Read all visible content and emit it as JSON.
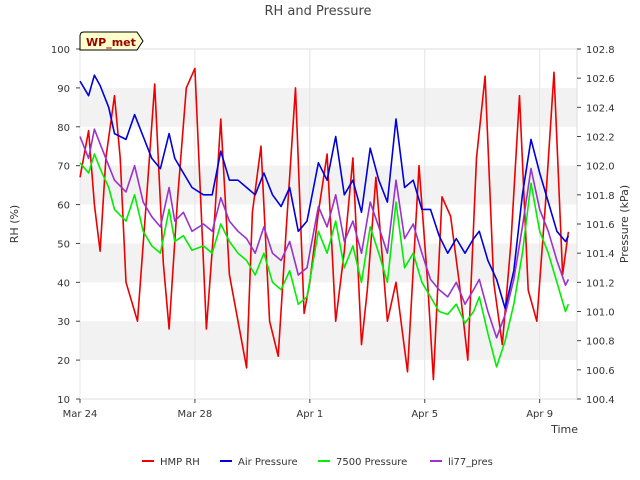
{
  "chart_data": {
    "type": "line",
    "title": "RH and Pressure",
    "site_badge": "WP_met",
    "xlabel": "Time",
    "ylabel_left": "RH (%)",
    "ylabel_right": "Pressure (kPa)",
    "x_unit": "day",
    "xlim": [
      0,
      17.3
    ],
    "x_ticks": [
      {
        "x": 0,
        "label": "Mar 24"
      },
      {
        "x": 4,
        "label": "Mar 28"
      },
      {
        "x": 8,
        "label": "Apr 1"
      },
      {
        "x": 12,
        "label": "Apr 5"
      },
      {
        "x": 16,
        "label": "Apr 9"
      }
    ],
    "ylim_left": [
      10,
      100
    ],
    "yticks_left": [
      "10",
      "20",
      "30",
      "40",
      "50",
      "60",
      "70",
      "80",
      "90",
      "100"
    ],
    "ylim_right": [
      100.4,
      102.8
    ],
    "yticks_right": [
      "100.4",
      "100.6",
      "100.8",
      "101.0",
      "101.2",
      "101.4",
      "101.6",
      "101.8",
      "102.0",
      "102.2",
      "102.4",
      "102.6",
      "102.8"
    ],
    "grid_bands": true,
    "legend_position": "bottom",
    "series": [
      {
        "name": "HMP RH",
        "color": "#ee0000",
        "axis": "left",
        "x": [
          0,
          0.3,
          0.5,
          0.7,
          0.9,
          1.2,
          1.4,
          1.6,
          2.0,
          2.3,
          2.6,
          2.9,
          3.1,
          3.4,
          3.7,
          4.0,
          4.4,
          4.7,
          4.9,
          5.2,
          5.5,
          5.8,
          6.0,
          6.3,
          6.6,
          6.9,
          7.2,
          7.5,
          7.8,
          8.0,
          8.3,
          8.6,
          8.9,
          9.2,
          9.5,
          9.8,
          10.0,
          10.3,
          10.7,
          11.0,
          11.4,
          11.8,
          12.1,
          12.3,
          12.6,
          12.9,
          13.2,
          13.5,
          13.8,
          14.1,
          14.4,
          14.7,
          15.0,
          15.3,
          15.6,
          15.9,
          16.2,
          16.5,
          16.8,
          17.0
        ],
        "y": [
          67,
          79,
          60,
          48,
          72,
          88,
          72,
          40,
          30,
          60,
          91,
          45,
          28,
          62,
          90,
          95,
          28,
          58,
          82,
          42,
          30,
          18,
          58,
          75,
          30,
          21,
          56,
          90,
          32,
          40,
          58,
          73,
          30,
          48,
          72,
          24,
          38,
          67,
          30,
          40,
          17,
          70,
          40,
          15,
          62,
          57,
          40,
          20,
          72,
          93,
          40,
          24,
          50,
          88,
          38,
          30,
          60,
          94,
          42,
          53
        ]
      },
      {
        "name": "Air Pressure",
        "color": "#0000dd",
        "axis": "left",
        "x": [
          0,
          0.3,
          0.5,
          0.7,
          1.0,
          1.2,
          1.6,
          1.9,
          2.2,
          2.5,
          2.8,
          3.1,
          3.3,
          3.6,
          3.9,
          4.3,
          4.6,
          4.9,
          5.2,
          5.5,
          5.8,
          6.1,
          6.4,
          6.7,
          7.0,
          7.3,
          7.6,
          7.9,
          8.3,
          8.6,
          8.9,
          9.2,
          9.5,
          9.8,
          10.1,
          10.4,
          10.7,
          11.0,
          11.3,
          11.6,
          11.9,
          12.2,
          12.5,
          12.8,
          13.1,
          13.4,
          13.7,
          13.9,
          14.2,
          14.5,
          14.8,
          15.1,
          15.4,
          15.7,
          16.0,
          16.3,
          16.6,
          16.9,
          17.0
        ],
        "y": [
          102.58,
          102.48,
          102.62,
          102.55,
          102.4,
          102.22,
          102.18,
          102.35,
          102.2,
          102.05,
          101.98,
          102.22,
          102.05,
          101.95,
          101.85,
          101.8,
          101.8,
          102.1,
          101.9,
          101.9,
          101.85,
          101.8,
          101.95,
          101.8,
          101.72,
          101.85,
          101.55,
          101.62,
          102.02,
          101.9,
          102.2,
          101.8,
          101.9,
          101.68,
          102.12,
          101.9,
          101.75,
          102.32,
          101.85,
          101.9,
          101.7,
          101.7,
          101.52,
          101.4,
          101.5,
          101.4,
          101.5,
          101.55,
          101.35,
          101.22,
          101.02,
          101.28,
          101.8,
          102.18,
          101.95,
          101.75,
          101.55,
          101.48,
          101.52
        ]
      },
      {
        "name": "7500 Pressure",
        "color": "#00ee00",
        "axis": "left",
        "x": [
          0,
          0.3,
          0.5,
          0.7,
          1.0,
          1.2,
          1.6,
          1.9,
          2.2,
          2.5,
          2.8,
          3.1,
          3.3,
          3.6,
          3.9,
          4.3,
          4.6,
          4.9,
          5.2,
          5.5,
          5.8,
          6.1,
          6.4,
          6.7,
          7.0,
          7.3,
          7.6,
          7.9,
          8.3,
          8.6,
          8.9,
          9.2,
          9.5,
          9.8,
          10.1,
          10.4,
          10.7,
          11.0,
          11.3,
          11.6,
          11.9,
          12.2,
          12.5,
          12.8,
          13.1,
          13.4,
          13.7,
          13.9,
          14.2,
          14.5,
          14.8,
          15.1,
          15.4,
          15.7,
          16.0,
          16.3,
          16.6,
          16.9,
          17.0
        ],
        "y": [
          102.02,
          101.95,
          102.08,
          101.98,
          101.85,
          101.7,
          101.62,
          101.8,
          101.55,
          101.45,
          101.4,
          101.7,
          101.48,
          101.52,
          101.42,
          101.45,
          101.4,
          101.6,
          101.48,
          101.4,
          101.35,
          101.25,
          101.4,
          101.2,
          101.15,
          101.28,
          101.05,
          101.1,
          101.55,
          101.4,
          101.62,
          101.3,
          101.45,
          101.2,
          101.58,
          101.4,
          101.2,
          101.75,
          101.3,
          101.4,
          101.2,
          101.1,
          101.0,
          100.98,
          101.05,
          100.92,
          101.0,
          101.1,
          100.85,
          100.62,
          100.8,
          101.05,
          101.4,
          101.88,
          101.55,
          101.4,
          101.2,
          101.0,
          101.05
        ]
      },
      {
        "name": "li77_pres",
        "color": "#9933cc",
        "axis": "left",
        "x": [
          0,
          0.3,
          0.5,
          0.7,
          1.0,
          1.2,
          1.6,
          1.9,
          2.2,
          2.5,
          2.8,
          3.1,
          3.3,
          3.6,
          3.9,
          4.3,
          4.6,
          4.9,
          5.2,
          5.5,
          5.8,
          6.1,
          6.4,
          6.7,
          7.0,
          7.3,
          7.6,
          7.9,
          8.3,
          8.6,
          8.9,
          9.2,
          9.5,
          9.8,
          10.1,
          10.4,
          10.7,
          11.0,
          11.3,
          11.6,
          11.9,
          12.2,
          12.5,
          12.8,
          13.1,
          13.4,
          13.7,
          13.9,
          14.2,
          14.5,
          14.8,
          15.1,
          15.4,
          15.7,
          16.0,
          16.3,
          16.6,
          16.9,
          17.0
        ],
        "y": [
          102.2,
          102.05,
          102.25,
          102.15,
          102.0,
          101.9,
          101.82,
          102.0,
          101.75,
          101.65,
          101.58,
          101.85,
          101.62,
          101.68,
          101.55,
          101.6,
          101.55,
          101.78,
          101.62,
          101.55,
          101.5,
          101.4,
          101.58,
          101.4,
          101.35,
          101.48,
          101.25,
          101.3,
          101.72,
          101.58,
          101.8,
          101.48,
          101.62,
          101.4,
          101.75,
          101.58,
          101.4,
          101.9,
          101.5,
          101.6,
          101.4,
          101.22,
          101.15,
          101.1,
          101.2,
          101.05,
          101.15,
          101.22,
          101.0,
          100.82,
          100.98,
          101.22,
          101.58,
          101.98,
          101.7,
          101.55,
          101.35,
          101.18,
          101.22
        ]
      }
    ]
  }
}
